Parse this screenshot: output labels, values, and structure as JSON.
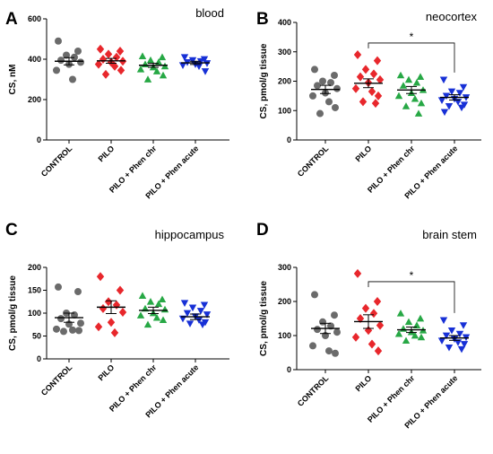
{
  "chart_data": [
    {
      "panel": "A",
      "title": "blood",
      "type": "scatter",
      "ylabel": "CS, nM",
      "ylim": [
        0,
        600
      ],
      "yticks": [
        0,
        200,
        400,
        600
      ],
      "categories": [
        "CONTROL",
        "PILO",
        "PILO + Phen chr",
        "PILO + Phen acute"
      ],
      "series": [
        {
          "values": [
            490,
            440,
            420,
            410,
            395,
            385,
            375,
            345,
            300
          ],
          "mean": 390,
          "sem": 18,
          "color": "#6b6b6b",
          "marker": "circle"
        },
        {
          "values": [
            450,
            440,
            425,
            410,
            400,
            390,
            385,
            375,
            365,
            345,
            325
          ],
          "mean": 392,
          "sem": 12,
          "color": "#e8272c",
          "marker": "diamond"
        },
        {
          "values": [
            415,
            410,
            395,
            385,
            375,
            365,
            360,
            350,
            340,
            320,
            300
          ],
          "mean": 370,
          "sem": 10,
          "color": "#27a845",
          "marker": "triangle-up"
        },
        {
          "values": [
            410,
            400,
            395,
            390,
            385,
            380,
            375,
            370,
            365,
            340
          ],
          "mean": 382,
          "sem": 8,
          "color": "#1730d6",
          "marker": "triangle-down"
        }
      ],
      "significance": []
    },
    {
      "panel": "B",
      "title": "neocortex",
      "type": "scatter",
      "ylabel": "CS, pmol/g tissue",
      "ylim": [
        0,
        400
      ],
      "yticks": [
        0,
        100,
        200,
        300,
        400
      ],
      "categories": [
        "CONTROL",
        "PILO",
        "PILO + Phen chr",
        "PILO + Phen acute"
      ],
      "series": [
        {
          "values": [
            240,
            220,
            200,
            195,
            185,
            175,
            160,
            150,
            130,
            110,
            90
          ],
          "mean": 172,
          "sem": 14,
          "color": "#6b6b6b",
          "marker": "circle"
        },
        {
          "values": [
            290,
            270,
            240,
            225,
            215,
            205,
            195,
            175,
            165,
            150,
            130,
            125
          ],
          "mean": 193,
          "sem": 15,
          "color": "#e8272c",
          "marker": "diamond"
        },
        {
          "values": [
            220,
            215,
            205,
            195,
            185,
            170,
            160,
            150,
            140,
            125,
            115,
            90
          ],
          "mean": 170,
          "sem": 12,
          "color": "#27a845",
          "marker": "triangle-up"
        },
        {
          "values": [
            205,
            180,
            165,
            160,
            150,
            145,
            140,
            135,
            130,
            120,
            115,
            110,
            95
          ],
          "mean": 145,
          "sem": 9,
          "color": "#1730d6",
          "marker": "triangle-down"
        }
      ],
      "significance": [
        {
          "from": 1,
          "to": 3,
          "y": 330,
          "label": "*"
        }
      ]
    },
    {
      "panel": "C",
      "title": "hippocampus",
      "type": "scatter",
      "ylabel": "CS, pmol/g tissue",
      "ylim": [
        0,
        200
      ],
      "yticks": [
        0,
        50,
        100,
        150,
        200
      ],
      "categories": [
        "CONTROL",
        "PILO",
        "PILO + Phen chr",
        "PILO + Phen acute"
      ],
      "series": [
        {
          "values": [
            157,
            147,
            100,
            96,
            88,
            78,
            76,
            65,
            63,
            62,
            60
          ],
          "mean": 90,
          "sem": 10,
          "color": "#6b6b6b",
          "marker": "circle"
        },
        {
          "values": [
            180,
            150,
            125,
            118,
            110,
            102,
            80,
            70,
            57
          ],
          "mean": 113,
          "sem": 14,
          "color": "#e8272c",
          "marker": "diamond"
        },
        {
          "values": [
            138,
            130,
            125,
            120,
            110,
            108,
            100,
            95,
            90,
            85,
            75
          ],
          "mean": 106,
          "sem": 7,
          "color": "#27a845",
          "marker": "triangle-up"
        },
        {
          "values": [
            122,
            118,
            112,
            105,
            100,
            97,
            93,
            88,
            85,
            80,
            77,
            75
          ],
          "mean": 92,
          "sem": 6,
          "color": "#1730d6",
          "marker": "triangle-down"
        }
      ],
      "significance": []
    },
    {
      "panel": "D",
      "title": "brain stem",
      "type": "scatter",
      "ylabel": "CS, pmol/g tissue",
      "ylim": [
        0,
        300
      ],
      "yticks": [
        0,
        100,
        200,
        300
      ],
      "categories": [
        "CONTROL",
        "PILO",
        "PILO + Phen chr",
        "PILO + Phen acute"
      ],
      "series": [
        {
          "values": [
            220,
            160,
            140,
            128,
            118,
            110,
            100,
            70,
            55,
            48
          ],
          "mean": 121,
          "sem": 15,
          "color": "#6b6b6b",
          "marker": "circle"
        },
        {
          "values": [
            282,
            200,
            180,
            165,
            150,
            130,
            115,
            95,
            75,
            55
          ],
          "mean": 141,
          "sem": 20,
          "color": "#e8272c",
          "marker": "diamond"
        },
        {
          "values": [
            165,
            150,
            140,
            130,
            120,
            115,
            110,
            105,
            100,
            95,
            85
          ],
          "mean": 117,
          "sem": 8,
          "color": "#27a845",
          "marker": "triangle-up"
        },
        {
          "values": [
            145,
            130,
            115,
            105,
            100,
            95,
            90,
            85,
            80,
            75,
            65,
            60
          ],
          "mean": 93,
          "sem": 7,
          "color": "#1730d6",
          "marker": "triangle-down"
        }
      ],
      "significance": [
        {
          "from": 1,
          "to": 3,
          "y": 258,
          "label": "*"
        }
      ]
    }
  ]
}
